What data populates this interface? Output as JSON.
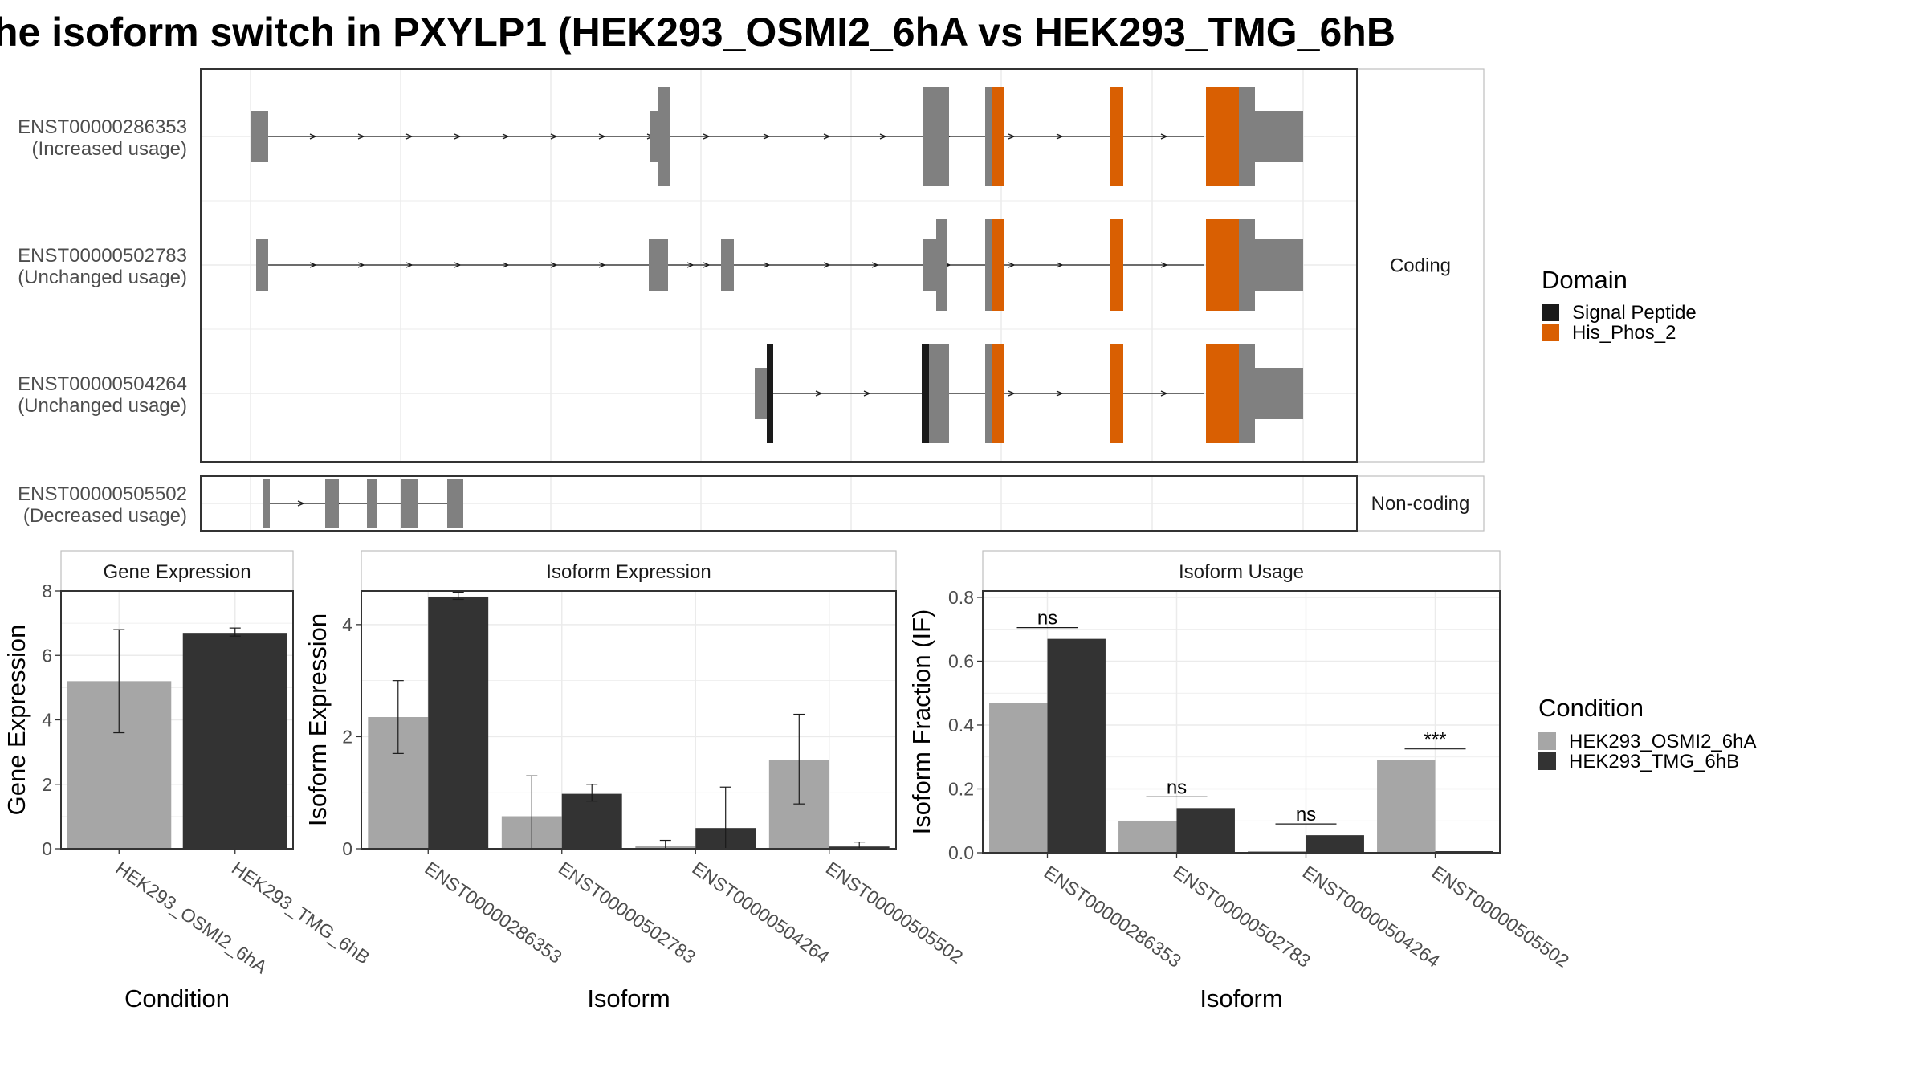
{
  "title": "he isoform switch in PXYLP1 (HEK293_OSMI2_6hA vs HEK293_TMG_6hB",
  "colors": {
    "exon": "#808080",
    "signal_peptide": "#1a1a1a",
    "his_phos_2": "#d95f02",
    "cond_a": "#a6a6a6",
    "cond_b": "#333333",
    "grid": "#ebebeb",
    "panel_border": "#333333",
    "strip_fill": "#ffffff",
    "strip_border": "#bfbfbf"
  },
  "structure": {
    "groups": [
      {
        "label": "Coding"
      },
      {
        "label": "Non-coding"
      }
    ],
    "transcripts": [
      {
        "name": "ENST00000286353",
        "usage": "(Increased usage)",
        "group": 0
      },
      {
        "name": "ENST00000502783",
        "usage": "(Unchanged usage)",
        "group": 0
      },
      {
        "name": "ENST00000504264",
        "usage": "(Unchanged usage)",
        "group": 0
      },
      {
        "name": "ENST00000505502",
        "usage": "(Decreased usage)",
        "group": 1
      }
    ]
  },
  "legend_domain": {
    "title": "Domain",
    "items": [
      {
        "label": "Signal Peptide",
        "color": "#1a1a1a"
      },
      {
        "label": "His_Phos_2",
        "color": "#d95f02"
      }
    ]
  },
  "legend_condition": {
    "title": "Condition",
    "items": [
      {
        "label": "HEK293_OSMI2_6hA",
        "color": "#a6a6a6"
      },
      {
        "label": "HEK293_TMG_6hB",
        "color": "#333333"
      }
    ]
  },
  "chart_data": [
    {
      "type": "bar",
      "title": "Gene Expression",
      "xlabel": "Condition",
      "ylabel": "Gene Expression",
      "ylim": [
        0,
        8
      ],
      "yticks": [
        0,
        2,
        4,
        6,
        8
      ],
      "categories": [
        "HEK293_OSMI2_6hA",
        "HEK293_TMG_6hB"
      ],
      "values": [
        5.2,
        6.7
      ],
      "err_low": [
        3.6,
        6.6
      ],
      "err_high": [
        6.8,
        6.85
      ]
    },
    {
      "type": "bar",
      "title": "Isoform Expression",
      "xlabel": "Isoform",
      "ylabel": "Isoform Expression",
      "ylim": [
        0,
        4.6
      ],
      "yticks": [
        0,
        2,
        4
      ],
      "categories": [
        "ENST00000286353",
        "ENST00000502783",
        "ENST00000504264",
        "ENST00000505502"
      ],
      "series": [
        {
          "name": "HEK293_OSMI2_6hA",
          "values": [
            2.35,
            0.58,
            0.05,
            1.58
          ],
          "err_low": [
            1.7,
            0.0,
            0.0,
            0.8
          ],
          "err_high": [
            3.0,
            1.3,
            0.15,
            2.4
          ]
        },
        {
          "name": "HEK293_TMG_6hB",
          "values": [
            4.5,
            0.98,
            0.37,
            0.04
          ],
          "err_low": [
            4.45,
            0.85,
            0.0,
            0.0
          ],
          "err_high": [
            4.58,
            1.15,
            1.1,
            0.12
          ]
        }
      ]
    },
    {
      "type": "bar",
      "title": "Isoform Usage",
      "xlabel": "Isoform",
      "ylabel": "Isoform Fraction (IF)",
      "ylim": [
        0,
        0.82
      ],
      "yticks": [
        0.0,
        0.2,
        0.4,
        0.6,
        0.8
      ],
      "ytick_labels": [
        "0.0",
        "0.2",
        "0.4",
        "0.6",
        "0.8"
      ],
      "categories": [
        "ENST00000286353",
        "ENST00000502783",
        "ENST00000504264",
        "ENST00000505502"
      ],
      "series": [
        {
          "name": "HEK293_OSMI2_6hA",
          "values": [
            0.47,
            0.1,
            0.005,
            0.29
          ]
        },
        {
          "name": "HEK293_TMG_6hB",
          "values": [
            0.67,
            0.14,
            0.055,
            0.005
          ]
        }
      ],
      "significance": [
        "ns",
        "ns",
        "ns",
        "***"
      ]
    }
  ]
}
